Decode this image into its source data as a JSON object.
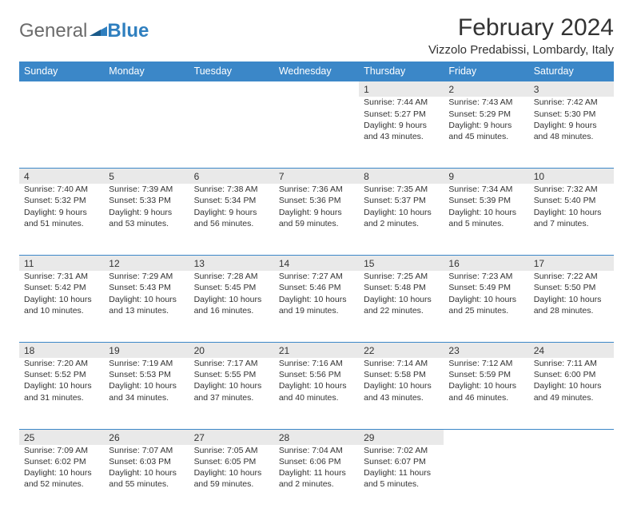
{
  "logo": {
    "text1": "General",
    "text2": "Blue"
  },
  "title": "February 2024",
  "location": "Vizzolo Predabissi, Lombardy, Italy",
  "colors": {
    "header_bg": "#3b87c8",
    "header_text": "#ffffff",
    "daynum_bg": "#e9e9e9",
    "border_accent": "#3b87c8",
    "text": "#333333",
    "logo_gray": "#6b6b6b",
    "logo_blue": "#2f7fbf",
    "page_bg": "#ffffff"
  },
  "typography": {
    "title_fontsize": 30,
    "location_fontsize": 15,
    "weekday_fontsize": 12.5,
    "daynum_fontsize": 12,
    "cell_fontsize": 10.5,
    "logo_fontsize": 24
  },
  "weekdays": [
    "Sunday",
    "Monday",
    "Tuesday",
    "Wednesday",
    "Thursday",
    "Friday",
    "Saturday"
  ],
  "weeks": [
    [
      null,
      null,
      null,
      null,
      {
        "n": "1",
        "sr": "Sunrise: 7:44 AM",
        "ss": "Sunset: 5:27 PM",
        "d1": "Daylight: 9 hours",
        "d2": "and 43 minutes."
      },
      {
        "n": "2",
        "sr": "Sunrise: 7:43 AM",
        "ss": "Sunset: 5:29 PM",
        "d1": "Daylight: 9 hours",
        "d2": "and 45 minutes."
      },
      {
        "n": "3",
        "sr": "Sunrise: 7:42 AM",
        "ss": "Sunset: 5:30 PM",
        "d1": "Daylight: 9 hours",
        "d2": "and 48 minutes."
      }
    ],
    [
      {
        "n": "4",
        "sr": "Sunrise: 7:40 AM",
        "ss": "Sunset: 5:32 PM",
        "d1": "Daylight: 9 hours",
        "d2": "and 51 minutes."
      },
      {
        "n": "5",
        "sr": "Sunrise: 7:39 AM",
        "ss": "Sunset: 5:33 PM",
        "d1": "Daylight: 9 hours",
        "d2": "and 53 minutes."
      },
      {
        "n": "6",
        "sr": "Sunrise: 7:38 AM",
        "ss": "Sunset: 5:34 PM",
        "d1": "Daylight: 9 hours",
        "d2": "and 56 minutes."
      },
      {
        "n": "7",
        "sr": "Sunrise: 7:36 AM",
        "ss": "Sunset: 5:36 PM",
        "d1": "Daylight: 9 hours",
        "d2": "and 59 minutes."
      },
      {
        "n": "8",
        "sr": "Sunrise: 7:35 AM",
        "ss": "Sunset: 5:37 PM",
        "d1": "Daylight: 10 hours",
        "d2": "and 2 minutes."
      },
      {
        "n": "9",
        "sr": "Sunrise: 7:34 AM",
        "ss": "Sunset: 5:39 PM",
        "d1": "Daylight: 10 hours",
        "d2": "and 5 minutes."
      },
      {
        "n": "10",
        "sr": "Sunrise: 7:32 AM",
        "ss": "Sunset: 5:40 PM",
        "d1": "Daylight: 10 hours",
        "d2": "and 7 minutes."
      }
    ],
    [
      {
        "n": "11",
        "sr": "Sunrise: 7:31 AM",
        "ss": "Sunset: 5:42 PM",
        "d1": "Daylight: 10 hours",
        "d2": "and 10 minutes."
      },
      {
        "n": "12",
        "sr": "Sunrise: 7:29 AM",
        "ss": "Sunset: 5:43 PM",
        "d1": "Daylight: 10 hours",
        "d2": "and 13 minutes."
      },
      {
        "n": "13",
        "sr": "Sunrise: 7:28 AM",
        "ss": "Sunset: 5:45 PM",
        "d1": "Daylight: 10 hours",
        "d2": "and 16 minutes."
      },
      {
        "n": "14",
        "sr": "Sunrise: 7:27 AM",
        "ss": "Sunset: 5:46 PM",
        "d1": "Daylight: 10 hours",
        "d2": "and 19 minutes."
      },
      {
        "n": "15",
        "sr": "Sunrise: 7:25 AM",
        "ss": "Sunset: 5:48 PM",
        "d1": "Daylight: 10 hours",
        "d2": "and 22 minutes."
      },
      {
        "n": "16",
        "sr": "Sunrise: 7:23 AM",
        "ss": "Sunset: 5:49 PM",
        "d1": "Daylight: 10 hours",
        "d2": "and 25 minutes."
      },
      {
        "n": "17",
        "sr": "Sunrise: 7:22 AM",
        "ss": "Sunset: 5:50 PM",
        "d1": "Daylight: 10 hours",
        "d2": "and 28 minutes."
      }
    ],
    [
      {
        "n": "18",
        "sr": "Sunrise: 7:20 AM",
        "ss": "Sunset: 5:52 PM",
        "d1": "Daylight: 10 hours",
        "d2": "and 31 minutes."
      },
      {
        "n": "19",
        "sr": "Sunrise: 7:19 AM",
        "ss": "Sunset: 5:53 PM",
        "d1": "Daylight: 10 hours",
        "d2": "and 34 minutes."
      },
      {
        "n": "20",
        "sr": "Sunrise: 7:17 AM",
        "ss": "Sunset: 5:55 PM",
        "d1": "Daylight: 10 hours",
        "d2": "and 37 minutes."
      },
      {
        "n": "21",
        "sr": "Sunrise: 7:16 AM",
        "ss": "Sunset: 5:56 PM",
        "d1": "Daylight: 10 hours",
        "d2": "and 40 minutes."
      },
      {
        "n": "22",
        "sr": "Sunrise: 7:14 AM",
        "ss": "Sunset: 5:58 PM",
        "d1": "Daylight: 10 hours",
        "d2": "and 43 minutes."
      },
      {
        "n": "23",
        "sr": "Sunrise: 7:12 AM",
        "ss": "Sunset: 5:59 PM",
        "d1": "Daylight: 10 hours",
        "d2": "and 46 minutes."
      },
      {
        "n": "24",
        "sr": "Sunrise: 7:11 AM",
        "ss": "Sunset: 6:00 PM",
        "d1": "Daylight: 10 hours",
        "d2": "and 49 minutes."
      }
    ],
    [
      {
        "n": "25",
        "sr": "Sunrise: 7:09 AM",
        "ss": "Sunset: 6:02 PM",
        "d1": "Daylight: 10 hours",
        "d2": "and 52 minutes."
      },
      {
        "n": "26",
        "sr": "Sunrise: 7:07 AM",
        "ss": "Sunset: 6:03 PM",
        "d1": "Daylight: 10 hours",
        "d2": "and 55 minutes."
      },
      {
        "n": "27",
        "sr": "Sunrise: 7:05 AM",
        "ss": "Sunset: 6:05 PM",
        "d1": "Daylight: 10 hours",
        "d2": "and 59 minutes."
      },
      {
        "n": "28",
        "sr": "Sunrise: 7:04 AM",
        "ss": "Sunset: 6:06 PM",
        "d1": "Daylight: 11 hours",
        "d2": "and 2 minutes."
      },
      {
        "n": "29",
        "sr": "Sunrise: 7:02 AM",
        "ss": "Sunset: 6:07 PM",
        "d1": "Daylight: 11 hours",
        "d2": "and 5 minutes."
      },
      null,
      null
    ]
  ]
}
